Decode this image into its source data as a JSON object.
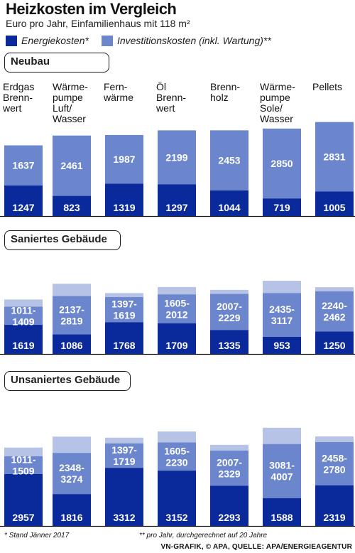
{
  "title": "Heizkosten im Vergleich",
  "subtitle": "Euro pro Jahr, Einfamilienhaus mit 118 m²",
  "legend": {
    "energy": "Energiekosten*",
    "investment": "Investitionskosten (inkl. Wartung)**"
  },
  "colors": {
    "energy": "#0a2a9c",
    "investment": "#6b86cc",
    "investment_light": "#b6c3e6"
  },
  "footnotes": {
    "left": "* Stand Jänner 2017",
    "right": "** pro Jahr, durchgerechnet auf 20 Jahre",
    "credit": "VN-GRAFIK, © APA, QUELLE: APA/ENERGIEAGENTUR"
  },
  "chart_data": {
    "type": "bar",
    "stacked": true,
    "categories": [
      "Erdgas Brennwert",
      "Wärmepumpe Luft/ Wasser",
      "Fernwärme",
      "Öl Brennwert",
      "Brennholz",
      "Wärmepumpe Sole/ Wasser",
      "Pellets"
    ],
    "category_lines": [
      [
        "Erdgas",
        "Brenn-",
        "wert"
      ],
      [
        "Wärme-",
        "pumpe",
        "Luft/",
        "Wasser"
      ],
      [
        "Fern-",
        "wärme"
      ],
      [
        "Öl",
        "Brenn-",
        "wert"
      ],
      [
        "Brenn-",
        "holz"
      ],
      [
        "Wärme-",
        "pumpe",
        "Sole/",
        "Wasser"
      ],
      [
        "Pellets"
      ]
    ],
    "panels": [
      {
        "label": "Neubau",
        "energy": [
          1247,
          823,
          1319,
          1297,
          1044,
          719,
          1005
        ],
        "investment_min": [
          1637,
          2461,
          1987,
          2199,
          2453,
          2850,
          2831
        ],
        "investment_max": [
          1637,
          2461,
          1987,
          2199,
          2453,
          2850,
          2831
        ],
        "investment_labels": [
          "1637",
          "2461",
          "1987",
          "2199",
          "2453",
          "2850",
          "2831"
        ]
      },
      {
        "label": "Saniertes Gebäude",
        "energy": [
          1619,
          1086,
          1768,
          1709,
          1335,
          953,
          1250
        ],
        "investment_min": [
          1011,
          2137,
          1397,
          1605,
          2007,
          2435,
          2240
        ],
        "investment_max": [
          1409,
          2819,
          1619,
          2012,
          2229,
          3117,
          2462
        ],
        "investment_labels": [
          "1011-|1409",
          "2137-|2819",
          "1397-|1619",
          "1605-|2012",
          "2007-|2229",
          "2435-|3117",
          "2240-|2462"
        ]
      },
      {
        "label": "Unsaniertes Gebäude",
        "energy": [
          2957,
          1816,
          3312,
          3152,
          2293,
          1588,
          2319
        ],
        "investment_min": [
          1011,
          2348,
          1397,
          1605,
          2007,
          3081,
          2458
        ],
        "investment_max": [
          1509,
          3274,
          1719,
          2230,
          2329,
          4007,
          2780
        ],
        "investment_labels": [
          "1011-|1509",
          "2348-|3274",
          "1397-|1719",
          "1605-|2230",
          "2007-|2329",
          "3081-|4007",
          "2458-|2780"
        ]
      }
    ]
  }
}
